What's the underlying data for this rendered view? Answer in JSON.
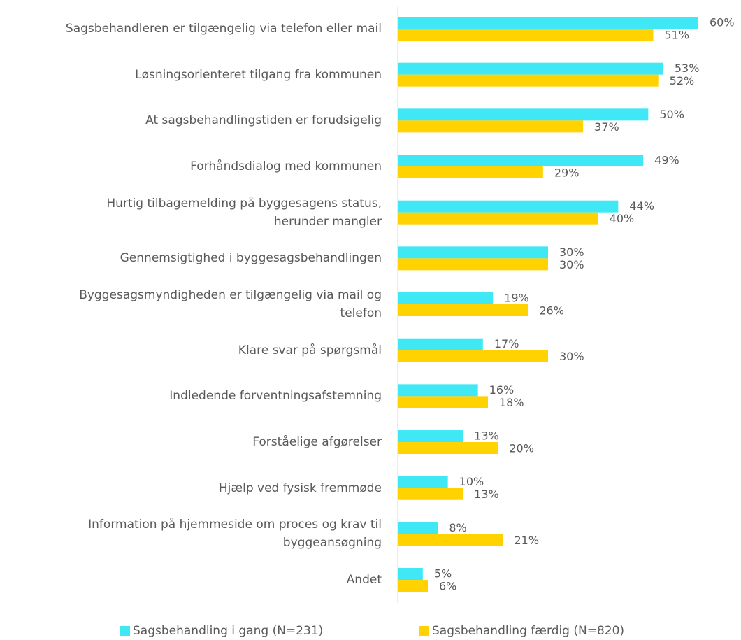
{
  "chart_data": {
    "type": "bar",
    "orientation": "horizontal",
    "categories": [
      "Sagsbehandleren er tilgængelig via telefon eller mail",
      "Løsningsorienteret tilgang fra kommunen",
      "At sagsbehandlingstiden er forudsigelig",
      "Forhåndsdialog med kommunen",
      "Hurtig tilbagemelding på byggesagens status,\nherunder mangler",
      "Gennemsigtighed i byggesagsbehandlingen",
      "Byggesagsmyndigheden er tilgængelig via mail og\ntelefon",
      "Klare svar på spørgsmål",
      "Indledende forventningsafstemning",
      "Forståelige afgørelser",
      "Hjælp ved fysisk fremmøde",
      "Information på hjemmeside om proces og krav til\nbyggeansøgning",
      "Andet"
    ],
    "series": [
      {
        "name": "Sagsbehandling i gang (N=231)",
        "color": "#40e8f6",
        "values": [
          60,
          53,
          50,
          49,
          44,
          30,
          19,
          17,
          16,
          13,
          10,
          8,
          5
        ],
        "value_labels": [
          "60%",
          "53%",
          "50%",
          "49%",
          "44%",
          "30%",
          "19%",
          "17%",
          "16%",
          "13%",
          "10%",
          "8%",
          "5%"
        ]
      },
      {
        "name": "Sagsbehandling færdig (N=820)",
        "color": "#ffd200",
        "values": [
          51,
          52,
          37,
          29,
          40,
          30,
          26,
          30,
          18,
          20,
          13,
          21,
          6
        ],
        "value_labels": [
          "51%",
          "52%",
          "37%",
          "29%",
          "40%",
          "30%",
          "26%",
          "30%",
          "18%",
          "20%",
          "13%",
          "21%",
          "6%"
        ]
      }
    ],
    "legend": "bottom"
  }
}
